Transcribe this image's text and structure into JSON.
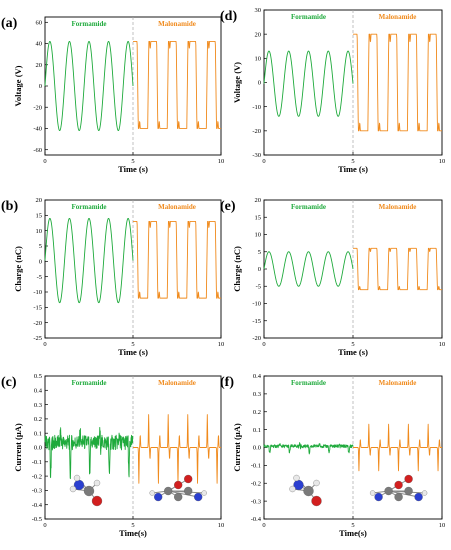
{
  "colors": {
    "formamide": "#1faa3c",
    "malonamide": "#f08a1c",
    "divider": "#a8a8a8",
    "axis": "#000000"
  },
  "segment_labels": {
    "formamide": "Formamide",
    "malonamide": "Malonamide"
  },
  "chart_data": [
    {
      "panel": "(a)",
      "type": "line",
      "xlabel": "Time (s)",
      "ylabel": "Voltage (V)",
      "xlim": [
        0,
        10
      ],
      "ylim": [
        -65,
        65
      ],
      "xticks": [
        0,
        5,
        10
      ],
      "yticks": [
        -60,
        -40,
        -20,
        0,
        20,
        40,
        60
      ],
      "divider_x": 5,
      "series": [
        {
          "name": "Formamide",
          "x_range": [
            0,
            5
          ],
          "amplitude_max": 42,
          "amplitude_min": -42,
          "cycles": 4.5,
          "shape": "triangle"
        },
        {
          "name": "Malonamide",
          "x_range": [
            5,
            10
          ],
          "amplitude_max": 42,
          "amplitude_min": -40,
          "cycles": 4.5,
          "shape": "square"
        }
      ]
    },
    {
      "panel": "(b)",
      "type": "line",
      "xlabel": "Time (s)",
      "ylabel": "Charge (nC)",
      "xlim": [
        0,
        10
      ],
      "ylim": [
        -25,
        20
      ],
      "xticks": [
        0,
        5,
        10
      ],
      "yticks": [
        -25,
        -20,
        -15,
        -10,
        -5,
        0,
        5,
        10,
        15,
        20
      ],
      "divider_x": 5,
      "series": [
        {
          "name": "Formamide",
          "x_range": [
            0,
            5
          ],
          "amplitude_max": 14,
          "amplitude_min": -13.5,
          "cycles": 4.5,
          "shape": "triangle"
        },
        {
          "name": "Malonamide",
          "x_range": [
            5,
            10
          ],
          "amplitude_max": 13,
          "amplitude_min": -12,
          "cycles": 4.5,
          "shape": "square"
        }
      ]
    },
    {
      "panel": "(c)",
      "type": "line",
      "xlabel": "Time(s)",
      "ylabel": "Current (μA)",
      "xlim": [
        0,
        10
      ],
      "ylim": [
        -0.5,
        0.5
      ],
      "xticks": [
        0,
        5,
        10
      ],
      "yticks": [
        -0.5,
        -0.4,
        -0.3,
        -0.2,
        -0.1,
        0.0,
        0.1,
        0.2,
        0.3,
        0.4,
        0.5
      ],
      "divider_x": 5,
      "series": [
        {
          "name": "Formamide",
          "x_range": [
            0,
            5
          ],
          "amplitude_max": 0.1,
          "amplitude_min": -0.2,
          "cycles": 4.5,
          "shape": "noisy"
        },
        {
          "name": "Malonamide",
          "x_range": [
            5,
            10
          ],
          "amplitude_max": 0.23,
          "amplitude_min": -0.25,
          "cycles": 4.5,
          "shape": "spike"
        }
      ]
    },
    {
      "panel": "(d)",
      "type": "line",
      "xlabel": "Time (s)",
      "ylabel": "Voltage (V)",
      "xlim": [
        0,
        10
      ],
      "ylim": [
        -30,
        30
      ],
      "xticks": [
        0,
        5,
        10
      ],
      "yticks": [
        -30,
        -20,
        -10,
        0,
        10,
        20,
        30
      ],
      "divider_x": 5,
      "series": [
        {
          "name": "Formamide",
          "x_range": [
            0,
            5
          ],
          "amplitude_max": 13,
          "amplitude_min": -14,
          "cycles": 4.5,
          "shape": "triangle"
        },
        {
          "name": "Malonamide",
          "x_range": [
            5,
            10
          ],
          "amplitude_max": 20,
          "amplitude_min": -20,
          "cycles": 4.5,
          "shape": "square"
        }
      ]
    },
    {
      "panel": "(e)",
      "type": "line",
      "xlabel": "Time (s)",
      "ylabel": "Charge (nC)",
      "xlim": [
        0,
        10
      ],
      "ylim": [
        -20,
        20
      ],
      "xticks": [
        0,
        5,
        10
      ],
      "yticks": [
        -20,
        -15,
        -10,
        -5,
        0,
        5,
        10,
        15,
        20
      ],
      "divider_x": 5,
      "series": [
        {
          "name": "Formamide",
          "x_range": [
            0,
            5
          ],
          "amplitude_max": 5,
          "amplitude_min": -5,
          "cycles": 4.5,
          "shape": "triangle"
        },
        {
          "name": "Malonamide",
          "x_range": [
            5,
            10
          ],
          "amplitude_max": 6,
          "amplitude_min": -6,
          "cycles": 4.5,
          "shape": "square"
        }
      ]
    },
    {
      "panel": "(f)",
      "type": "line",
      "xlabel": "Time(s)",
      "ylabel": "Current (μA)",
      "xlim": [
        0,
        10
      ],
      "ylim": [
        -0.4,
        0.4
      ],
      "xticks": [
        0,
        5,
        10
      ],
      "yticks": [
        -0.4,
        -0.3,
        -0.2,
        -0.1,
        0.0,
        0.1,
        0.2,
        0.3,
        0.4
      ],
      "divider_x": 5,
      "series": [
        {
          "name": "Formamide",
          "x_range": [
            0,
            5
          ],
          "amplitude_max": 0.02,
          "amplitude_min": -0.03,
          "cycles": 4.5,
          "shape": "noisy"
        },
        {
          "name": "Malonamide",
          "x_range": [
            5,
            10
          ],
          "amplitude_max": 0.13,
          "amplitude_min": -0.13,
          "cycles": 4.5,
          "shape": "spike"
        }
      ]
    }
  ]
}
